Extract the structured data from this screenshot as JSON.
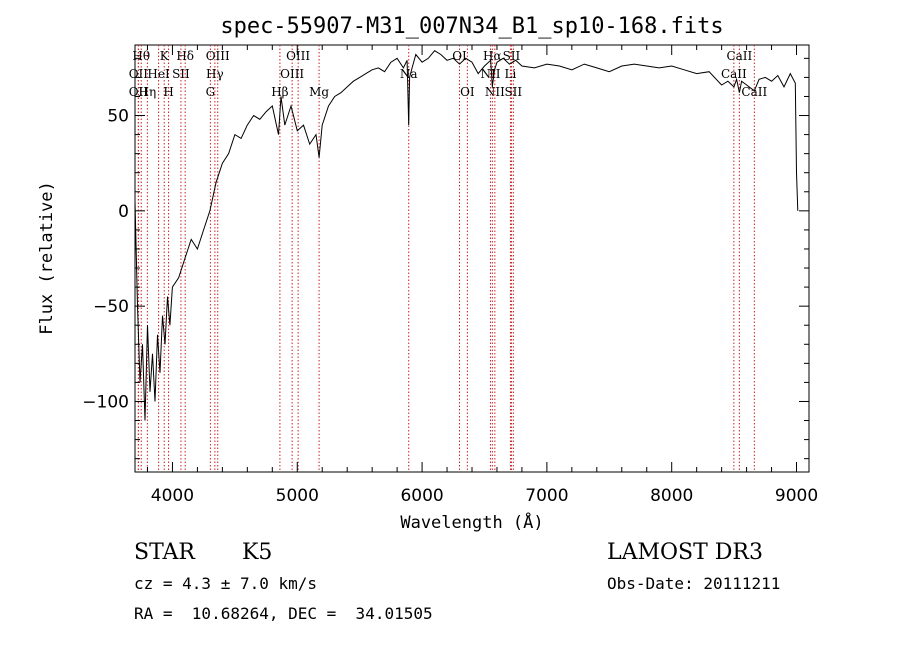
{
  "chart_data": {
    "type": "line",
    "title": "spec-55907-M31_007N34_B1_sp10-168.fits",
    "xlabel": "Wavelength (Å)",
    "ylabel": "Flux (relative)",
    "xlim": [
      3700,
      9100
    ],
    "ylim": [
      -137,
      87
    ],
    "x_ticks": [
      4000,
      5000,
      6000,
      7000,
      8000,
      9000
    ],
    "y_ticks": [
      -100,
      -50,
      0,
      50
    ],
    "grid": false,
    "series": [
      {
        "name": "spectrum",
        "x": [
          3700,
          3720,
          3740,
          3760,
          3780,
          3800,
          3820,
          3840,
          3860,
          3880,
          3900,
          3920,
          3940,
          3960,
          3980,
          4000,
          4050,
          4100,
          4150,
          4200,
          4250,
          4300,
          4350,
          4400,
          4450,
          4500,
          4550,
          4600,
          4650,
          4700,
          4750,
          4800,
          4850,
          4870,
          4900,
          4950,
          5000,
          5050,
          5100,
          5150,
          5175,
          5200,
          5250,
          5300,
          5350,
          5400,
          5450,
          5500,
          5550,
          5600,
          5650,
          5700,
          5750,
          5800,
          5850,
          5880,
          5893,
          5900,
          5920,
          5950,
          6000,
          6050,
          6100,
          6150,
          6200,
          6250,
          6300,
          6350,
          6400,
          6450,
          6500,
          6550,
          6563,
          6580,
          6600,
          6650,
          6700,
          6750,
          6800,
          6900,
          7000,
          7100,
          7200,
          7300,
          7400,
          7500,
          7600,
          7700,
          7800,
          7900,
          8000,
          8100,
          8200,
          8300,
          8400,
          8450,
          8498,
          8520,
          8542,
          8560,
          8600,
          8662,
          8700,
          8750,
          8800,
          8850,
          8900,
          8950,
          8990,
          9000,
          9010
        ],
        "y": [
          5,
          -50,
          -90,
          -70,
          -110,
          -60,
          -95,
          -75,
          -100,
          -65,
          -85,
          -55,
          -70,
          -45,
          -60,
          -40,
          -35,
          -25,
          -15,
          -20,
          -10,
          0,
          15,
          25,
          30,
          40,
          38,
          45,
          50,
          48,
          52,
          55,
          40,
          60,
          45,
          55,
          42,
          45,
          35,
          40,
          28,
          45,
          55,
          60,
          62,
          65,
          68,
          70,
          72,
          74,
          75,
          73,
          78,
          80,
          75,
          79,
          45,
          70,
          75,
          82,
          78,
          80,
          84,
          82,
          79,
          80,
          77,
          80,
          78,
          72,
          76,
          79,
          65,
          74,
          78,
          80,
          77,
          79,
          76,
          75,
          77,
          76,
          74,
          77,
          75,
          73,
          76,
          77,
          76,
          75,
          76,
          74,
          72,
          73,
          66,
          68,
          65,
          69,
          62,
          68,
          66,
          63,
          69,
          70,
          68,
          71,
          65,
          72,
          67,
          20,
          0
        ]
      }
    ],
    "lines": [
      {
        "wavelength": 3750,
        "label": "Hθ",
        "row": 0
      },
      {
        "wavelength": 3727,
        "label": "OII",
        "row": 1
      },
      {
        "wavelength": 3727,
        "label": "OII",
        "row": 2
      },
      {
        "wavelength": 3799,
        "label": "Hη",
        "row": 2
      },
      {
        "wavelength": 3889,
        "label": "HeI",
        "row": 1
      },
      {
        "wavelength": 3934,
        "label": "K",
        "row": 0
      },
      {
        "wavelength": 3969,
        "label": "H",
        "row": 2
      },
      {
        "wavelength": 4068,
        "label": "SII",
        "row": 1
      },
      {
        "wavelength": 4102,
        "label": "Hδ",
        "row": 0
      },
      {
        "wavelength": 4304,
        "label": "G",
        "row": 2
      },
      {
        "wavelength": 4340,
        "label": "Hγ",
        "row": 1
      },
      {
        "wavelength": 4363,
        "label": "OIII",
        "row": 0
      },
      {
        "wavelength": 4861,
        "label": "Hβ",
        "row": 2
      },
      {
        "wavelength": 4959,
        "label": "OIII",
        "row": 1
      },
      {
        "wavelength": 5007,
        "label": "OIII",
        "row": 0
      },
      {
        "wavelength": 5175,
        "label": "Mg",
        "row": 2
      },
      {
        "wavelength": 5893,
        "label": "Na",
        "row": 1
      },
      {
        "wavelength": 6300,
        "label": "OI",
        "row": 0
      },
      {
        "wavelength": 6363,
        "label": "OI",
        "row": 2
      },
      {
        "wavelength": 6548,
        "label": "NII",
        "row": 1
      },
      {
        "wavelength": 6563,
        "label": "Hα",
        "row": 0
      },
      {
        "wavelength": 6583,
        "label": "NII",
        "row": 2
      },
      {
        "wavelength": 6708,
        "label": "Li",
        "row": 1
      },
      {
        "wavelength": 6716,
        "label": "SII",
        "row": 0
      },
      {
        "wavelength": 6731,
        "label": "SII",
        "row": 2
      },
      {
        "wavelength": 8498,
        "label": "CaII",
        "row": 1
      },
      {
        "wavelength": 8542,
        "label": "CaII",
        "row": 0
      },
      {
        "wavelength": 8662,
        "label": "CaII",
        "row": 2
      }
    ]
  },
  "info": {
    "object_class": "STAR",
    "subclass": "K5",
    "survey": "LAMOST DR3",
    "cz": "cz = 4.3 ± 7.0 km/s",
    "obs_date": "Obs-Date: 20111211",
    "coords": "RA =  10.68264, DEC =  34.01505"
  }
}
